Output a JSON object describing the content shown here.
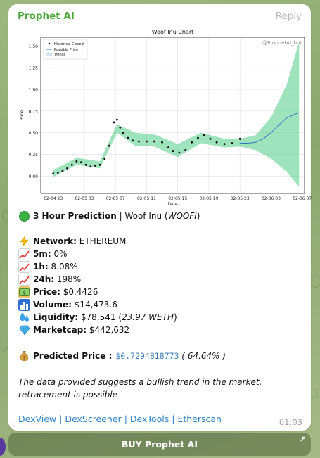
{
  "message": {
    "sender": "Prophet AI",
    "reply_label": "Reply",
    "time": "01:03",
    "title_bold": "3 Hour Prediction",
    "title_rest": " | Woof Inu (",
    "title_ticker": "WOOFI",
    "title_close": ")",
    "network_label": "Network:",
    "network_value": " ETHEREUM",
    "m5_label": "5m:",
    "m5_value": " 0%",
    "h1_label": "1h:",
    "h1_value": " 8.08%",
    "h24_label": "24h:",
    "h24_value": " 198%",
    "price_label": "Price:",
    "price_value": " $0.4426",
    "volume_label": "Volume:",
    "volume_value": " $14,473.6",
    "liquidity_label": "Liquidity:",
    "liquidity_value": " $78,541 (",
    "liquidity_weth": "23.97 WETH",
    "liquidity_close": ")",
    "marketcap_label": "Marketcap:",
    "marketcap_value": " $442,632",
    "predicted_label": "Predicted Price :",
    "predicted_value": "$0.7294818773",
    "predicted_pct": " ( 64.64% )",
    "note": "The data provided suggests a bullish trend in the market. retracement is possible",
    "links": [
      "DexView",
      "DexScreener",
      "DexTools",
      "Etherscan"
    ]
  },
  "buy_button": {
    "label": "BUY Prophet AI"
  },
  "icons": {
    "status": "green-circle-icon",
    "network": "lightning-icon",
    "trend": "chart-increasing-icon",
    "price": "money-icon",
    "volume": "bar-chart-icon",
    "liquidity": "droplets-icon",
    "marketcap": "diamond-icon",
    "predicted": "money-bag-icon"
  },
  "colors": {
    "sender": "#4fa83d",
    "link": "#2d7fc0",
    "band": "#5ed18e",
    "forecast": "#2f78c4"
  },
  "chart_data": {
    "type": "line",
    "title": "Woof Inu Chart",
    "xlabel": "Date",
    "ylabel": "Price",
    "watermark": "@ProphetAI_bot",
    "legend": [
      "Historical Closed",
      "Possible Price",
      "Trends"
    ],
    "legend_position": "top-left",
    "grid": true,
    "ylim": [
      -0.2,
      1.6
    ],
    "yticks": [
      0.0,
      0.25,
      0.5,
      0.75,
      1.0,
      1.25,
      1.5
    ],
    "xticks": [
      "02-04 23",
      "02-05 03",
      "02-05 07",
      "02-05 11",
      "02-05 15",
      "02-05 19",
      "02-05 23",
      "02-06 03",
      "02-06 07"
    ],
    "xlim_hours": [
      -1.6,
      32.3
    ],
    "historical": [
      {
        "x": 0.0,
        "y": 0.03
      },
      {
        "x": 0.6,
        "y": 0.04
      },
      {
        "x": 1.2,
        "y": 0.06
      },
      {
        "x": 1.8,
        "y": 0.09
      },
      {
        "x": 2.4,
        "y": 0.13
      },
      {
        "x": 3.0,
        "y": 0.17
      },
      {
        "x": 3.6,
        "y": 0.16
      },
      {
        "x": 4.2,
        "y": 0.13
      },
      {
        "x": 4.8,
        "y": 0.11
      },
      {
        "x": 5.4,
        "y": 0.12
      },
      {
        "x": 6.0,
        "y": 0.13
      },
      {
        "x": 6.6,
        "y": 0.2
      },
      {
        "x": 7.2,
        "y": 0.35
      },
      {
        "x": 7.8,
        "y": 0.62
      },
      {
        "x": 8.2,
        "y": 0.65
      },
      {
        "x": 8.6,
        "y": 0.56
      },
      {
        "x": 9.0,
        "y": 0.5
      },
      {
        "x": 9.6,
        "y": 0.44
      },
      {
        "x": 10.2,
        "y": 0.41
      },
      {
        "x": 11.0,
        "y": 0.4
      },
      {
        "x": 12.0,
        "y": 0.4
      },
      {
        "x": 13.0,
        "y": 0.4
      },
      {
        "x": 14.0,
        "y": 0.39
      },
      {
        "x": 14.8,
        "y": 0.33
      },
      {
        "x": 15.4,
        "y": 0.29
      },
      {
        "x": 16.2,
        "y": 0.27
      },
      {
        "x": 17.0,
        "y": 0.3
      },
      {
        "x": 17.8,
        "y": 0.39
      },
      {
        "x": 18.6,
        "y": 0.44
      },
      {
        "x": 19.4,
        "y": 0.47
      },
      {
        "x": 20.2,
        "y": 0.43
      },
      {
        "x": 21.0,
        "y": 0.39
      },
      {
        "x": 22.0,
        "y": 0.37
      },
      {
        "x": 23.0,
        "y": 0.38
      },
      {
        "x": 24.0,
        "y": 0.43
      }
    ],
    "possible_price": [
      {
        "x": 24.0,
        "y": 0.38
      },
      {
        "x": 25.0,
        "y": 0.38
      },
      {
        "x": 26.0,
        "y": 0.39
      },
      {
        "x": 27.0,
        "y": 0.43
      },
      {
        "x": 28.0,
        "y": 0.5
      },
      {
        "x": 29.0,
        "y": 0.59
      },
      {
        "x": 30.0,
        "y": 0.67
      },
      {
        "x": 31.0,
        "y": 0.71
      },
      {
        "x": 31.6,
        "y": 0.73
      }
    ],
    "trend_upper": [
      {
        "x": 0.0,
        "y": 0.07
      },
      {
        "x": 3.0,
        "y": 0.21
      },
      {
        "x": 6.0,
        "y": 0.17
      },
      {
        "x": 8.2,
        "y": 0.6
      },
      {
        "x": 10.5,
        "y": 0.5
      },
      {
        "x": 13.0,
        "y": 0.48
      },
      {
        "x": 16.0,
        "y": 0.37
      },
      {
        "x": 19.0,
        "y": 0.5
      },
      {
        "x": 22.0,
        "y": 0.43
      },
      {
        "x": 24.0,
        "y": 0.43
      },
      {
        "x": 26.0,
        "y": 0.47
      },
      {
        "x": 28.0,
        "y": 0.68
      },
      {
        "x": 30.0,
        "y": 1.05
      },
      {
        "x": 31.6,
        "y": 1.55
      }
    ],
    "trend_lower": [
      {
        "x": 0.0,
        "y": -0.01
      },
      {
        "x": 3.0,
        "y": 0.13
      },
      {
        "x": 6.0,
        "y": 0.09
      },
      {
        "x": 8.2,
        "y": 0.5
      },
      {
        "x": 10.5,
        "y": 0.35
      },
      {
        "x": 13.0,
        "y": 0.34
      },
      {
        "x": 16.0,
        "y": 0.22
      },
      {
        "x": 19.0,
        "y": 0.38
      },
      {
        "x": 22.0,
        "y": 0.33
      },
      {
        "x": 24.0,
        "y": 0.34
      },
      {
        "x": 26.0,
        "y": 0.3
      },
      {
        "x": 28.0,
        "y": 0.2
      },
      {
        "x": 30.0,
        "y": 0.05
      },
      {
        "x": 31.6,
        "y": -0.12
      }
    ]
  }
}
